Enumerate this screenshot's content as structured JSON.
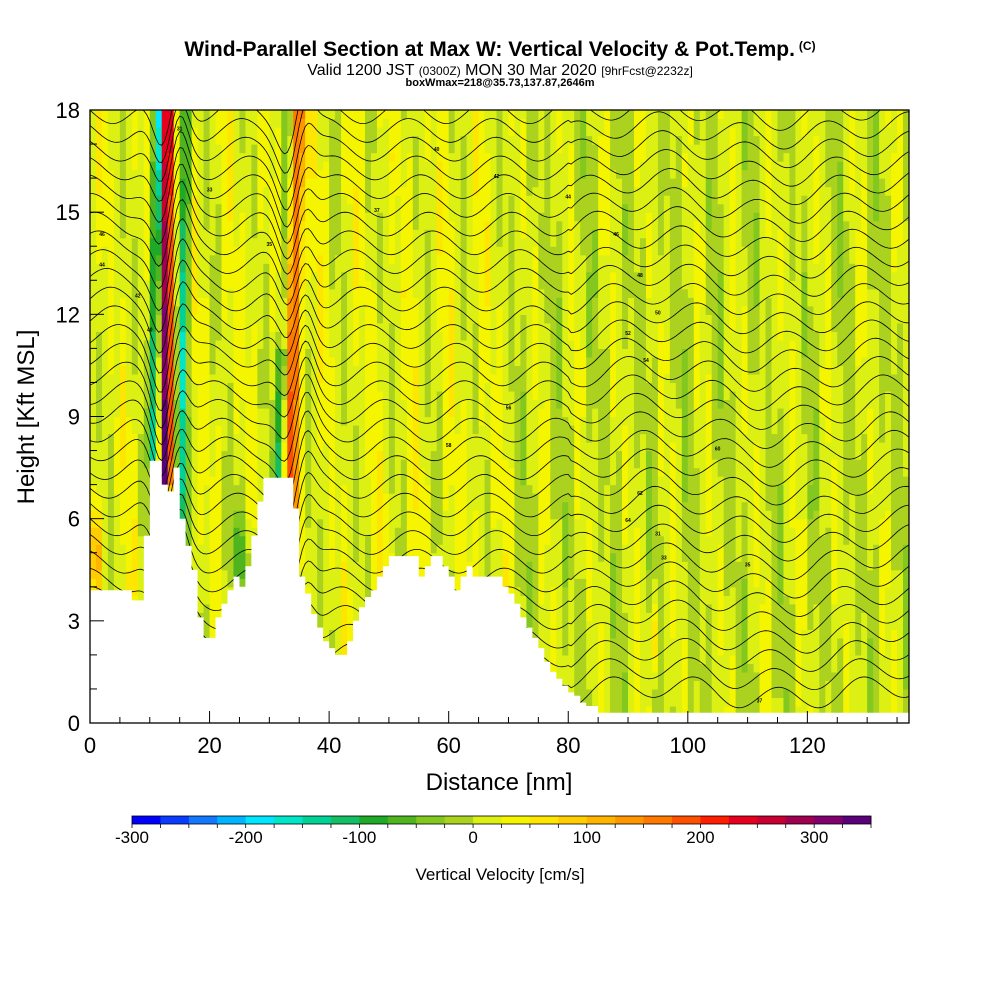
{
  "header": {
    "title": "Wind-Parallel Section at Max W: Vertical Velocity & Pot.Temp.",
    "copyright": "(C)",
    "valid_prefix": "Valid 1200 JST",
    "valid_utc": "(0300Z)",
    "valid_date": "MON 30 Mar 2020",
    "forecast": "[9hrFcst@2232z]",
    "box_info": "boxWmax=218@35.73,137.87,2646m"
  },
  "chart_data": {
    "type": "heatmap",
    "xlabel": "Distance [nm]",
    "ylabel": "Height [Kft MSL]",
    "xlim": [
      0,
      137
    ],
    "ylim": [
      0,
      18
    ],
    "x_ticks": [
      0,
      20,
      40,
      60,
      80,
      100,
      120
    ],
    "y_ticks": [
      0,
      3,
      6,
      9,
      12,
      15,
      18
    ],
    "colorbar": {
      "title": "Vertical Velocity [cm/s]",
      "range": [
        -300,
        350
      ],
      "step": 25,
      "tick_labels": [
        "-300",
        "-200",
        "-100",
        "0",
        "100",
        "200",
        "300"
      ],
      "tick_values": [
        -300,
        -200,
        -100,
        0,
        100,
        200,
        300
      ],
      "colors": [
        "#0000ff",
        "#0a3cff",
        "#1478ff",
        "#00b4ff",
        "#00e6ff",
        "#00e6c8",
        "#00d296",
        "#14be64",
        "#1eaa28",
        "#50b41e",
        "#82c81e",
        "#aad21e",
        "#dcf014",
        "#f5f500",
        "#ffe600",
        "#ffcd00",
        "#ffb400",
        "#ff9600",
        "#ff7800",
        "#ff5000",
        "#ff1e00",
        "#e6001e",
        "#c80032",
        "#a00050",
        "#80006e",
        "#5a0078"
      ]
    },
    "terrain": [
      [
        0,
        3.9
      ],
      [
        3,
        3.9
      ],
      [
        6,
        3.9
      ],
      [
        7,
        3.6
      ],
      [
        8,
        3.6
      ],
      [
        9,
        5.5
      ],
      [
        10,
        7.7
      ],
      [
        11,
        7.7
      ],
      [
        12,
        7.0
      ],
      [
        13,
        6.8
      ],
      [
        14,
        7.5
      ],
      [
        15,
        6.0
      ],
      [
        16,
        5.2
      ],
      [
        17,
        4.5
      ],
      [
        18,
        3.1
      ],
      [
        19,
        2.5
      ],
      [
        20,
        2.5
      ],
      [
        21,
        3.1
      ],
      [
        22,
        3.5
      ],
      [
        23,
        3.9
      ],
      [
        24,
        4.3
      ],
      [
        25,
        4.0
      ],
      [
        26,
        4.6
      ],
      [
        27,
        5.5
      ],
      [
        28,
        6.5
      ],
      [
        29,
        7.2
      ],
      [
        30,
        7.2
      ],
      [
        31,
        7.2
      ],
      [
        32,
        7.2
      ],
      [
        33,
        7.2
      ],
      [
        34,
        6.3
      ],
      [
        35,
        4.3
      ],
      [
        36,
        3.8
      ],
      [
        37,
        3.2
      ],
      [
        38,
        2.8
      ],
      [
        39,
        2.4
      ],
      [
        40,
        2.2
      ],
      [
        41,
        2.0
      ],
      [
        42,
        2.0
      ],
      [
        43,
        2.4
      ],
      [
        44,
        3.0
      ],
      [
        45,
        3.4
      ],
      [
        46,
        3.7
      ],
      [
        47,
        3.9
      ],
      [
        48,
        4.3
      ],
      [
        49,
        4.6
      ],
      [
        50,
        4.9
      ],
      [
        52,
        4.9
      ],
      [
        54,
        4.9
      ],
      [
        55,
        4.3
      ],
      [
        56,
        4.6
      ],
      [
        57,
        4.9
      ],
      [
        58,
        4.9
      ],
      [
        59,
        4.6
      ],
      [
        60,
        4.3
      ],
      [
        61,
        3.9
      ],
      [
        62,
        4.3
      ],
      [
        63,
        4.6
      ],
      [
        64,
        4.3
      ],
      [
        65,
        4.3
      ],
      [
        67,
        4.3
      ],
      [
        68,
        4.3
      ],
      [
        69,
        4.0
      ],
      [
        70,
        3.8
      ],
      [
        71,
        3.5
      ],
      [
        72,
        3.1
      ],
      [
        73,
        2.8
      ],
      [
        74,
        2.5
      ],
      [
        75,
        2.2
      ],
      [
        76,
        1.8
      ],
      [
        77,
        1.5
      ],
      [
        78,
        1.3
      ],
      [
        79,
        1.1
      ],
      [
        80,
        0.9
      ],
      [
        81,
        0.8
      ],
      [
        82,
        0.6
      ],
      [
        83,
        0.5
      ],
      [
        84,
        0.5
      ],
      [
        85,
        0.3
      ],
      [
        86,
        0.3
      ],
      [
        137,
        0.3
      ]
    ],
    "contour_labels": [
      "31",
      "33",
      "35",
      "37",
      "40",
      "42",
      "44",
      "46",
      "48",
      "50",
      "52",
      "54",
      "56",
      "58",
      "60",
      "62",
      "64"
    ]
  }
}
